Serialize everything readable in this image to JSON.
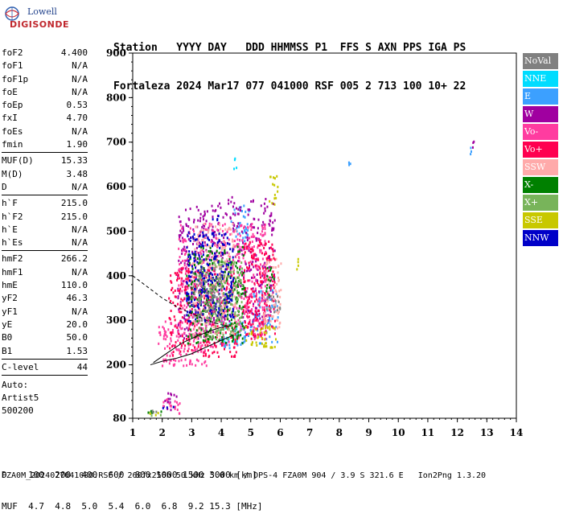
{
  "logo": {
    "line1": "Lowell",
    "line2": "DIGISONDE"
  },
  "header": {
    "line1": "Station   YYYY DAY   DDD HHMMSS P1  FFS S AXN PPS IGA PS",
    "line2": "Fortaleza 2024 Mar17 077 041000 RSF 005 2 713 100 10+ 22"
  },
  "params": {
    "group1": [
      [
        "foF2",
        "4.400"
      ],
      [
        "foF1",
        "N/A"
      ],
      [
        "foF1p",
        "N/A"
      ],
      [
        "foE",
        "N/A"
      ],
      [
        "foEp",
        "0.53"
      ],
      [
        "fxI",
        "4.70"
      ],
      [
        "foEs",
        "N/A"
      ],
      [
        "fmin",
        "1.90"
      ]
    ],
    "group2": [
      [
        "MUF(D)",
        "15.33"
      ],
      [
        "M(D)",
        "3.48"
      ],
      [
        "D",
        "N/A"
      ]
    ],
    "group3": [
      [
        "h`F",
        "215.0"
      ],
      [
        "h`F2",
        "215.0"
      ],
      [
        "h`E",
        "N/A"
      ],
      [
        "h`Es",
        "N/A"
      ]
    ],
    "group4": [
      [
        "hmF2",
        "266.2"
      ],
      [
        "hmF1",
        "N/A"
      ],
      [
        "hmE",
        "110.0"
      ],
      [
        "yF2",
        "46.3"
      ],
      [
        "yF1",
        "N/A"
      ],
      [
        "yE",
        "20.0"
      ],
      [
        "B0",
        "50.0"
      ],
      [
        "B1",
        "1.53"
      ]
    ],
    "group5": [
      [
        "C-level",
        "44"
      ]
    ],
    "auto_lines": [
      "Auto:",
      "Artist5",
      "500200"
    ]
  },
  "legend": [
    {
      "label": "NoVal",
      "color": "#808080"
    },
    {
      "label": "NNE",
      "color": "#00dcff"
    },
    {
      "label": "E",
      "color": "#3ca0ff"
    },
    {
      "label": "W",
      "color": "#a000a0"
    },
    {
      "label": "Vo-",
      "color": "#ff3ca0"
    },
    {
      "label": "Vo+",
      "color": "#ff0050"
    },
    {
      "label": "SSW",
      "color": "#ffaaaa"
    },
    {
      "label": "X-",
      "color": "#008000"
    },
    {
      "label": "X+",
      "color": "#78b45a"
    },
    {
      "label": "SSE",
      "color": "#c8c800"
    },
    {
      "label": "NNW",
      "color": "#0000c8"
    }
  ],
  "muf_table": {
    "line1": "D    100  200  400  600  800 1000 1500 3000 [km]",
    "line2": "MUF  4.7  4.8  5.0  5.4  6.0  6.8  9.2 15.3 [MHz]"
  },
  "footer": "FZA0M_2024077041000.RSF / 260fx256h 50 kHz 5.0 km / DPS-4 FZA0M 904 / 3.9 S 321.6 E   Ion2Png 1.3.20",
  "chart_data": {
    "type": "scatter",
    "title": "",
    "xlabel": "",
    "ylabel": "",
    "xlim": [
      1,
      14
    ],
    "ylim": [
      80,
      900
    ],
    "xticks": [
      "1",
      "2",
      "3",
      "4",
      "5",
      "6",
      "7",
      "8",
      "9",
      "10",
      "11",
      "12",
      "13",
      "14"
    ],
    "yticks": [
      "80",
      "200",
      "300",
      "400",
      "500",
      "600",
      "700",
      "800",
      "900"
    ],
    "series": [
      {
        "color": "#3ca0ff",
        "regions": [
          [
            4.3,
            5.0,
            480,
            560
          ],
          [
            5.0,
            5.9,
            250,
            370
          ],
          [
            3.9,
            5.0,
            240,
            300
          ],
          [
            8.3,
            8.35,
            650,
            660
          ],
          [
            12.4,
            12.45,
            675,
            690
          ]
        ]
      },
      {
        "color": "#00dcff",
        "regions": [
          [
            4.0,
            4.6,
            250,
            300
          ],
          [
            4.4,
            4.5,
            640,
            700
          ]
        ]
      },
      {
        "color": "#a000a0",
        "regions": [
          [
            2.0,
            2.5,
            100,
            140
          ],
          [
            2.5,
            3.8,
            260,
            560
          ],
          [
            3.8,
            5.8,
            300,
            580
          ],
          [
            12.5,
            12.55,
            690,
            730
          ]
        ]
      },
      {
        "color": "#ff3ca0",
        "regions": [
          [
            1.8,
            3.5,
            200,
            300
          ],
          [
            2.5,
            4.6,
            240,
            520
          ],
          [
            4.5,
            5.5,
            260,
            520
          ],
          [
            2.0,
            2.6,
            90,
            130
          ]
        ]
      },
      {
        "color": "#ff0050",
        "regions": [
          [
            2.2,
            4.5,
            220,
            420
          ],
          [
            4.7,
            5.8,
            260,
            480
          ]
        ]
      },
      {
        "color": "#ffaaaa",
        "regions": [
          [
            3.0,
            4.5,
            260,
            520
          ],
          [
            5.4,
            6.0,
            280,
            440
          ]
        ]
      },
      {
        "color": "#008000",
        "regions": [
          [
            1.5,
            2.0,
            86,
            100
          ],
          [
            2.8,
            4.8,
            250,
            470
          ],
          [
            5.5,
            5.8,
            350,
            420
          ]
        ]
      },
      {
        "color": "#78b45a",
        "regions": [
          [
            1.5,
            2.0,
            86,
            96
          ],
          [
            3.2,
            4.7,
            260,
            440
          ]
        ]
      },
      {
        "color": "#c8c800",
        "regions": [
          [
            4.8,
            5.9,
            240,
            290
          ],
          [
            5.6,
            5.9,
            560,
            630
          ],
          [
            6.5,
            6.6,
            400,
            450
          ],
          [
            1.5,
            1.9,
            88,
            96
          ]
        ]
      },
      {
        "color": "#0000c8",
        "regions": [
          [
            2.0,
            2.4,
            98,
            110
          ],
          [
            2.8,
            4.4,
            300,
            500
          ],
          [
            3.6,
            3.9,
            520,
            540
          ]
        ]
      },
      {
        "color": "#808080",
        "regions": [
          [
            1.6,
            2.0,
            90,
            100
          ],
          [
            3.0,
            4.0,
            300,
            420
          ],
          [
            5.5,
            6.0,
            320,
            360
          ]
        ]
      }
    ],
    "profile_curve": [
      [
        1.0,
        400
      ],
      [
        1.5,
        375
      ],
      [
        2.0,
        350
      ],
      [
        2.5,
        330
      ],
      [
        3.0,
        315
      ],
      [
        3.5,
        300
      ],
      [
        4.0,
        290
      ],
      [
        4.3,
        285
      ]
    ],
    "trace_lower": [
      [
        1.6,
        200
      ],
      [
        2.0,
        208
      ],
      [
        2.5,
        215
      ],
      [
        3.0,
        225
      ],
      [
        3.5,
        240
      ],
      [
        4.0,
        255
      ],
      [
        4.4,
        266
      ]
    ],
    "trace_upper": [
      [
        1.7,
        205
      ],
      [
        2.2,
        228
      ],
      [
        2.7,
        250
      ],
      [
        3.2,
        265
      ],
      [
        3.7,
        278
      ],
      [
        4.2,
        288
      ]
    ]
  }
}
